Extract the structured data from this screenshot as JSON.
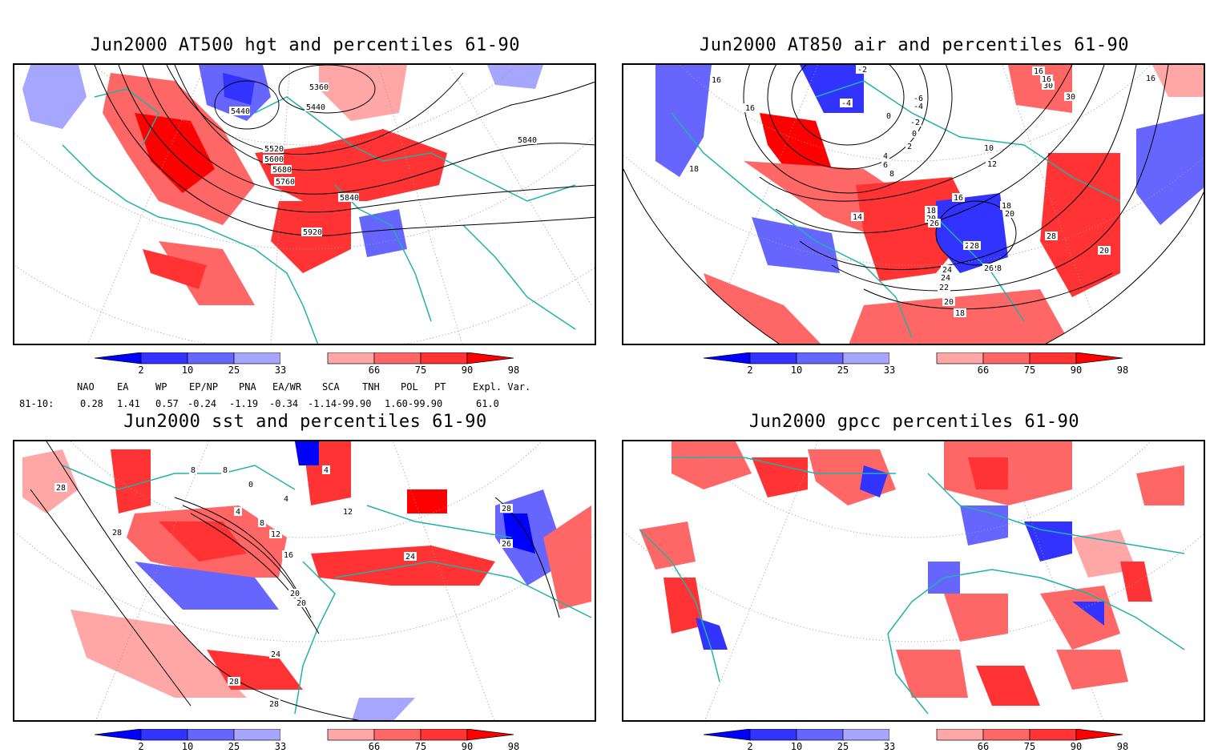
{
  "panels": [
    {
      "title": "Jun2000 AT500 hgt and percentiles 61-90",
      "contour_labels": [
        "5360",
        "5440",
        "5440",
        "5520",
        "5600",
        "5680",
        "5760",
        "5840",
        "5920",
        "5840"
      ]
    },
    {
      "title": "Jun2000 AT850 air and percentiles 61-90",
      "contour_labels": [
        "16",
        "16",
        "-2",
        "-4",
        "-6",
        "-4",
        "-2",
        "0",
        "0",
        "2",
        "4",
        "6",
        "8",
        "10",
        "12",
        "14",
        "16",
        "18",
        "20",
        "22",
        "24",
        "26",
        "28",
        "30",
        "30",
        "16",
        "16",
        "16",
        "18",
        "18",
        "20",
        "24",
        "26",
        "26",
        "28",
        "18",
        "28",
        "20",
        "20"
      ]
    },
    {
      "title": "Jun2000 sst and percentiles 61-90",
      "contour_labels": [
        "28",
        "28",
        "8",
        "0",
        "8",
        "4",
        "4",
        "8",
        "12",
        "16",
        "20",
        "20",
        "24",
        "24",
        "28",
        "28",
        "28",
        "12",
        "4",
        "26"
      ]
    },
    {
      "title": "Jun2000 gpcc percentiles 61-90",
      "contour_labels": []
    }
  ],
  "colorbar": {
    "labels": [
      "2",
      "10",
      "25",
      "33",
      "66",
      "75",
      "90",
      "98"
    ],
    "colors": [
      "#0000ff",
      "#3333ff",
      "#6666ff",
      "#a6a6ff",
      "#ffa6a6",
      "#ff6666",
      "#ff3333",
      "#ff0000"
    ]
  },
  "teleconnections": {
    "headers": [
      "NAO",
      "EA",
      "WP",
      "EP/NP",
      "PNA",
      "EA/WR",
      "SCA",
      "TNH",
      "POL",
      "PT",
      "Expl. Var."
    ],
    "row_label": "81-10:",
    "values": [
      "0.28",
      "1.41",
      "0.57",
      "-0.24",
      "-1.19",
      "-0.34",
      "-1.14-99.90",
      "1.60-99.90",
      "61.0"
    ]
  }
}
